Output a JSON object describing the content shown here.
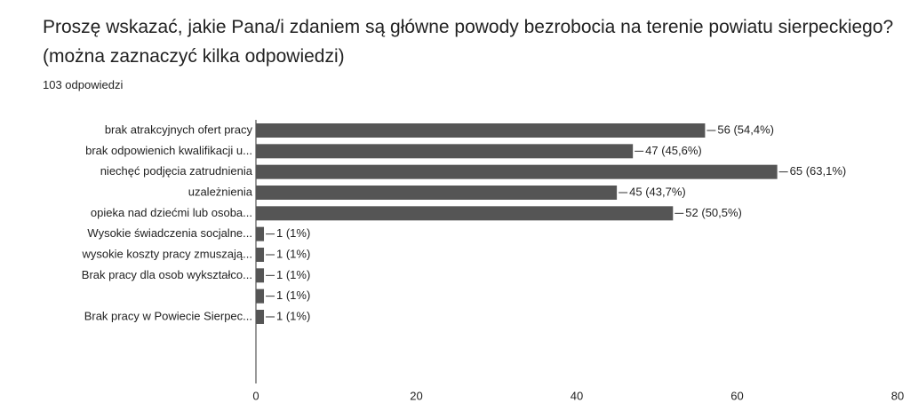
{
  "chart_data": {
    "type": "bar",
    "orientation": "horizontal",
    "title": "Proszę wskazać, jakie Pana/i zdaniem są główne powody bezrobocia na terenie powiatu sierpeckiego? (można zaznaczyć kilka odpowiedzi)",
    "subtitle": "103 odpowiedzi",
    "categories": [
      "brak atrakcyjnych ofert pracy",
      "brak odpowienich kwalifikacji u...",
      "niechęć podjęcia zatrudnienia",
      "uzależnienia",
      "opieka nad dziećmi lub osoba...",
      "Wysokie świadczenia socjalne...",
      "wysokie koszty pracy zmuszają...",
      "Brak pracy dla osob wykształco...",
      null,
      "Brak pracy w Powiecie Sierpec..."
    ],
    "values": [
      56,
      47,
      65,
      45,
      52,
      1,
      1,
      1,
      1,
      1
    ],
    "value_labels": [
      "56 (54,4%)",
      "47 (45,6%)",
      "65 (63,1%)",
      "45 (43,7%)",
      "52 (50,5%)",
      "1 (1%)",
      "1 (1%)",
      "1 (1%)",
      "1 (1%)",
      "1 (1%)"
    ],
    "color": "#555555",
    "xlim": [
      0,
      80
    ],
    "xticks": [
      0,
      20,
      40,
      60,
      80
    ]
  }
}
